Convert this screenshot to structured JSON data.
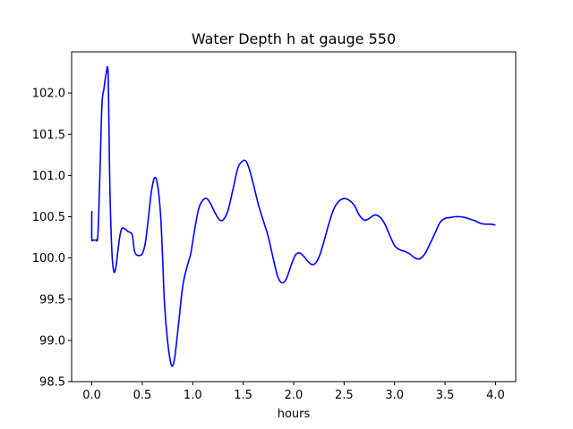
{
  "chart_data": {
    "type": "line",
    "title": "Water Depth h at gauge 550",
    "xlabel": "hours",
    "ylabel": "",
    "xlim": [
      -0.2,
      4.2
    ],
    "ylim": [
      98.5,
      102.5
    ],
    "xticks": [
      0.0,
      0.5,
      1.0,
      1.5,
      2.0,
      2.5,
      3.0,
      3.5,
      4.0
    ],
    "xtick_labels": [
      "0.0",
      "0.5",
      "1.0",
      "1.5",
      "2.0",
      "2.5",
      "3.0",
      "3.5",
      "4.0"
    ],
    "yticks": [
      98.5,
      99.0,
      99.5,
      100.0,
      100.5,
      101.0,
      101.5,
      102.0
    ],
    "ytick_labels": [
      "98.5",
      "99.0",
      "99.5",
      "100.0",
      "100.5",
      "101.0",
      "101.5",
      "102.0"
    ],
    "grid": false,
    "series": [
      {
        "color": "#0000ff",
        "x": [
          0.0,
          0.0,
          0.01,
          0.04,
          0.06,
          0.08,
          0.1,
          0.12,
          0.14,
          0.16,
          0.17,
          0.18,
          0.2,
          0.22,
          0.24,
          0.26,
          0.28,
          0.3,
          0.33,
          0.36,
          0.4,
          0.42,
          0.44,
          0.47,
          0.5,
          0.53,
          0.56,
          0.59,
          0.62,
          0.65,
          0.68,
          0.7,
          0.72,
          0.75,
          0.78,
          0.8,
          0.82,
          0.84,
          0.86,
          0.88,
          0.9,
          0.92,
          0.95,
          0.98,
          1.0,
          1.03,
          1.06,
          1.1,
          1.14,
          1.18,
          1.22,
          1.26,
          1.3,
          1.35,
          1.4,
          1.45,
          1.5,
          1.53,
          1.56,
          1.6,
          1.65,
          1.7,
          1.75,
          1.8,
          1.84,
          1.88,
          1.92,
          1.95,
          1.98,
          2.02,
          2.06,
          2.1,
          2.14,
          2.18,
          2.22,
          2.26,
          2.3,
          2.35,
          2.4,
          2.45,
          2.5,
          2.55,
          2.6,
          2.65,
          2.7,
          2.75,
          2.8,
          2.85,
          2.9,
          2.95,
          3.0,
          3.05,
          3.1,
          3.15,
          3.2,
          3.25,
          3.3,
          3.35,
          3.4,
          3.45,
          3.5,
          3.55,
          3.6,
          3.65,
          3.7,
          3.75,
          3.8,
          3.85,
          3.9,
          3.95,
          4.0
        ],
        "y": [
          100.57,
          100.24,
          100.22,
          100.22,
          100.28,
          101.0,
          101.85,
          102.05,
          102.22,
          102.28,
          101.6,
          100.8,
          100.05,
          99.83,
          99.9,
          100.1,
          100.28,
          100.36,
          100.35,
          100.32,
          100.28,
          100.1,
          100.04,
          100.03,
          100.05,
          100.18,
          100.48,
          100.8,
          100.97,
          100.9,
          100.55,
          100.05,
          99.45,
          99.0,
          98.74,
          98.69,
          98.78,
          98.98,
          99.2,
          99.44,
          99.65,
          99.78,
          99.92,
          100.05,
          100.2,
          100.42,
          100.6,
          100.7,
          100.72,
          100.65,
          100.55,
          100.47,
          100.46,
          100.58,
          100.84,
          101.1,
          101.18,
          101.17,
          101.08,
          100.9,
          100.65,
          100.45,
          100.25,
          99.98,
          99.78,
          99.7,
          99.73,
          99.82,
          99.93,
          100.04,
          100.06,
          100.02,
          99.96,
          99.92,
          99.94,
          100.04,
          100.2,
          100.42,
          100.6,
          100.69,
          100.72,
          100.7,
          100.64,
          100.52,
          100.46,
          100.48,
          100.52,
          100.5,
          100.42,
          100.28,
          100.15,
          100.1,
          100.08,
          100.05,
          100.0,
          99.99,
          100.05,
          100.17,
          100.3,
          100.43,
          100.48,
          100.49,
          100.5,
          100.5,
          100.49,
          100.47,
          100.45,
          100.42,
          100.41,
          100.41,
          100.4
        ]
      }
    ]
  }
}
